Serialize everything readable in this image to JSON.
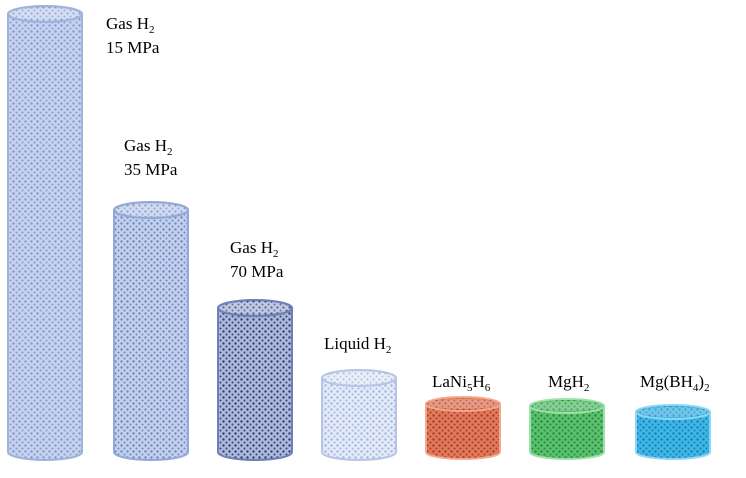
{
  "cylinders": [
    {
      "id": "gas-15",
      "name": "gas-h2-15mpa",
      "lines": [
        [
          {
            "t": "Gas H"
          },
          {
            "t": "2",
            "sub": true
          }
        ],
        [
          {
            "t": "15 MPa"
          }
        ]
      ],
      "color": "#c7d3ee",
      "dot": "#7f98cc",
      "edge": "#9fb2dc"
    },
    {
      "id": "gas-35",
      "name": "gas-h2-35mpa",
      "lines": [
        [
          {
            "t": "Gas H"
          },
          {
            "t": "2",
            "sub": true
          }
        ],
        [
          {
            "t": "35 MPa"
          }
        ]
      ],
      "color": "#c3d0ec",
      "dot": "#6b88c4",
      "edge": "#93a8d6"
    },
    {
      "id": "gas-70",
      "name": "gas-h2-70mpa",
      "lines": [
        [
          {
            "t": "Gas H"
          },
          {
            "t": "2",
            "sub": true
          }
        ],
        [
          {
            "t": "70 MPa"
          }
        ]
      ],
      "color": "#aeb9d9",
      "dot": "#2f3f7e",
      "edge": "#6d7fb4"
    },
    {
      "id": "liquid",
      "name": "liquid-h2",
      "lines": [
        [
          {
            "t": "Liquid H"
          },
          {
            "t": "2",
            "sub": true
          }
        ]
      ],
      "color": "#e4eaf7",
      "dot": "#9fb4de",
      "edge": "#b6c5e6"
    },
    {
      "id": "lani5h6",
      "name": "lani5h6",
      "lines": [
        [
          {
            "t": "LaNi"
          },
          {
            "t": "5",
            "sub": true
          },
          {
            "t": "H"
          },
          {
            "t": "6",
            "sub": true
          }
        ]
      ],
      "color": "#e07a5a",
      "dot": "#a83a26",
      "edge": "#f2a891"
    },
    {
      "id": "mgh2",
      "name": "mgh2",
      "lines": [
        [
          {
            "t": "MgH"
          },
          {
            "t": "2",
            "sub": true
          }
        ]
      ],
      "color": "#5cc070",
      "dot": "#1f8a3a",
      "edge": "#9ee0aa"
    },
    {
      "id": "mgbh4",
      "name": "mg-bh4-2",
      "lines": [
        [
          {
            "t": "Mg(BH"
          },
          {
            "t": "4",
            "sub": true
          },
          {
            "t": ")"
          },
          {
            "t": "2",
            "sub": true
          }
        ]
      ],
      "color": "#3fb6e6",
      "dot": "#137fb3",
      "edge": "#8fd6f2"
    }
  ]
}
